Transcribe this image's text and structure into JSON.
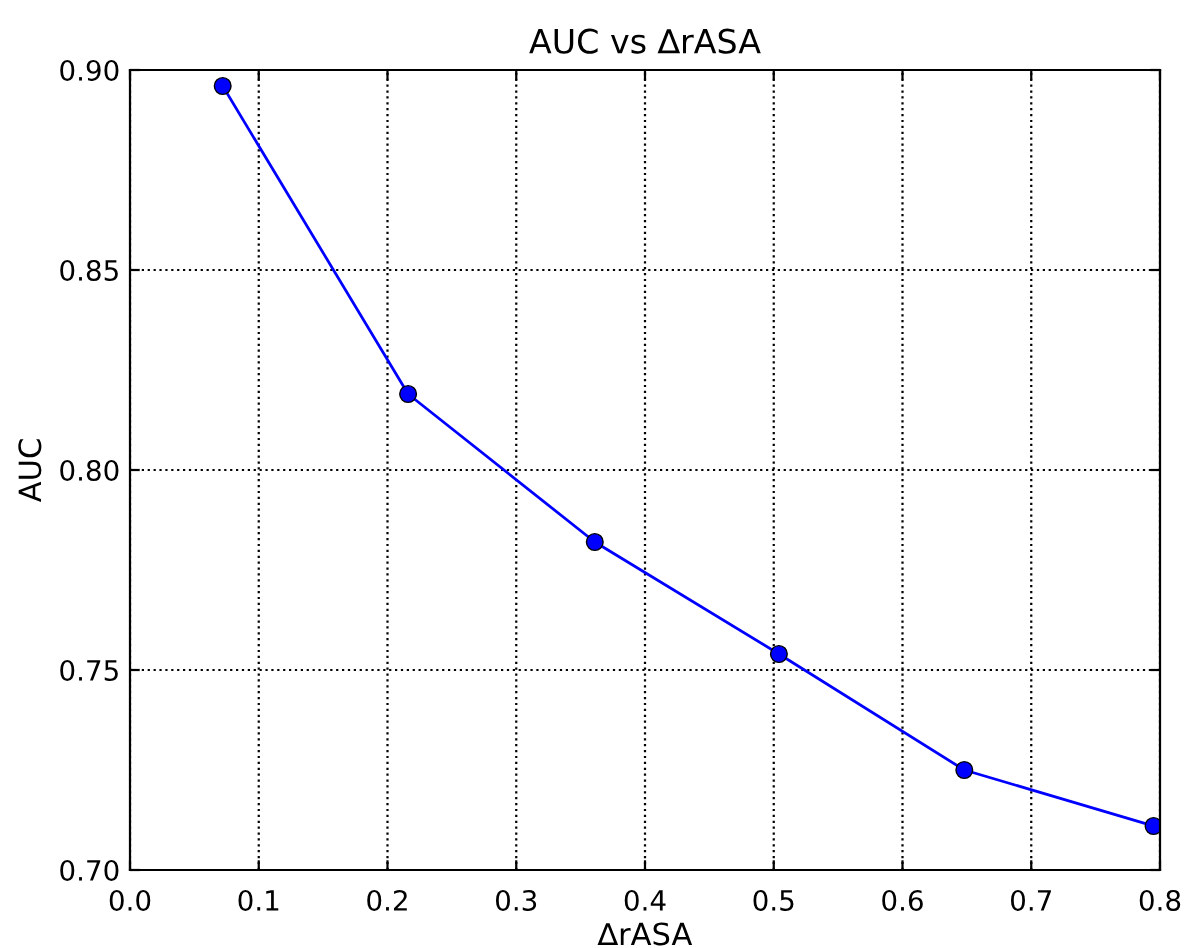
{
  "chart_data": {
    "type": "line",
    "title": "AUC vs ∆rASA",
    "xlabel": "∆rASA",
    "ylabel": "AUC",
    "x": [
      0.072,
      0.216,
      0.361,
      0.504,
      0.648,
      0.795
    ],
    "series": [
      {
        "color": "#0000ff",
        "values": [
          0.896,
          0.819,
          0.782,
          0.754,
          0.725,
          0.711
        ]
      }
    ],
    "xlim": [
      0.0,
      0.8
    ],
    "xticks": [
      {
        "value": 0.0,
        "label": "0.0"
      },
      0.1,
      0.2,
      0.3,
      0.4,
      0.5,
      0.6,
      0.7,
      0.8
    ],
    "ylim": [
      0.7,
      0.9
    ],
    "yticks": [
      {
        "value": 0.7,
        "label": "0.70"
      },
      {
        "value": 0.75,
        "label": "0.75"
      },
      {
        "value": 0.8,
        "label": "0.80"
      },
      {
        "value": 0.85,
        "label": "0.85"
      },
      {
        "value": 0.9,
        "label": "0.90"
      }
    ],
    "grid": true,
    "marker": "circle",
    "line_style": "solid"
  }
}
